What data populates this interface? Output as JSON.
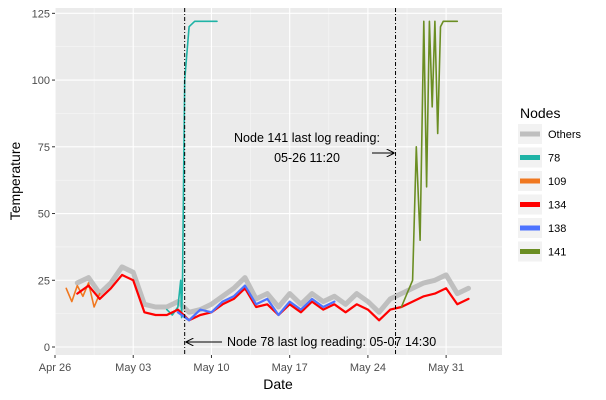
{
  "chart_data": {
    "type": "line",
    "title": "",
    "xlabel": "Date",
    "ylabel": "Temperature",
    "xlim": [
      "2015-04-26",
      "2015-06-05"
    ],
    "ylim": [
      -3,
      127
    ],
    "x_ticks": [
      {
        "date": "2015-04-26",
        "label": "Apr 26"
      },
      {
        "date": "2015-05-03",
        "label": "May 03"
      },
      {
        "date": "2015-05-10",
        "label": "May 10"
      },
      {
        "date": "2015-05-17",
        "label": "May 17"
      },
      {
        "date": "2015-05-24",
        "label": "May 24"
      },
      {
        "date": "2015-05-31",
        "label": "May 31"
      }
    ],
    "y_ticks": [
      0,
      25,
      50,
      75,
      100,
      125
    ],
    "grid": true,
    "legend": {
      "title": "Nodes",
      "position": "right"
    },
    "series": [
      {
        "name": "Others",
        "color": "#bfbfbf",
        "x": [
          "2015-04-28 00:00",
          "2015-04-29 00:00",
          "2015-04-30 00:00",
          "2015-05-01 00:00",
          "2015-05-02 00:00",
          "2015-05-03 00:00",
          "2015-05-04 00:00",
          "2015-05-05 00:00",
          "2015-05-06 00:00",
          "2015-05-07 00:00",
          "2015-05-08 00:00",
          "2015-05-09 00:00",
          "2015-05-10 00:00",
          "2015-05-11 00:00",
          "2015-05-12 00:00",
          "2015-05-13 00:00",
          "2015-05-14 00:00",
          "2015-05-15 00:00",
          "2015-05-16 00:00",
          "2015-05-17 00:00",
          "2015-05-18 00:00",
          "2015-05-19 00:00",
          "2015-05-20 00:00",
          "2015-05-21 00:00",
          "2015-05-22 00:00",
          "2015-05-23 00:00",
          "2015-05-24 00:00",
          "2015-05-25 00:00",
          "2015-05-26 00:00",
          "2015-05-27 00:00",
          "2015-05-28 00:00",
          "2015-05-29 00:00",
          "2015-05-30 00:00",
          "2015-05-31 00:00",
          "2015-06-01 00:00",
          "2015-06-02 00:00"
        ],
        "y": [
          24,
          26,
          20,
          24,
          30,
          28,
          16,
          15,
          15,
          17,
          13,
          14,
          16,
          19,
          22,
          26,
          18,
          20,
          15,
          20,
          16,
          20,
          17,
          19,
          16,
          20,
          17,
          13,
          18,
          20,
          22,
          24,
          25,
          27,
          20,
          22
        ]
      },
      {
        "name": "78",
        "color": "#1fb3a6",
        "x": [
          "2015-05-06 00:00",
          "2015-05-06 12:00",
          "2015-05-07 00:00",
          "2015-05-07 06:00",
          "2015-05-07 08:00",
          "2015-05-07 10:00",
          "2015-05-07 12:00",
          "2015-05-07 14:30",
          "2015-05-08 00:00",
          "2015-05-08 12:00",
          "2015-05-09 00:00",
          "2015-05-10 00:00",
          "2015-05-10 12:00"
        ],
        "y": [
          14,
          12,
          15,
          25,
          11,
          27,
          60,
          100,
          120,
          122,
          122,
          122,
          122
        ]
      },
      {
        "name": "109",
        "color": "#f07820",
        "x": [
          "2015-04-27 00:00",
          "2015-04-27 12:00",
          "2015-04-28 00:00",
          "2015-04-28 12:00",
          "2015-04-29 00:00",
          "2015-04-29 12:00",
          "2015-04-30 00:00"
        ],
        "y": [
          22,
          17,
          23,
          19,
          24,
          15,
          20
        ]
      },
      {
        "name": "134",
        "color": "#ff0000",
        "x": [
          "2015-04-28 00:00",
          "2015-04-29 00:00",
          "2015-04-30 00:00",
          "2015-05-01 00:00",
          "2015-05-02 00:00",
          "2015-05-03 00:00",
          "2015-05-04 00:00",
          "2015-05-05 00:00",
          "2015-05-06 00:00",
          "2015-05-07 00:00",
          "2015-05-08 00:00",
          "2015-05-09 00:00",
          "2015-05-10 00:00",
          "2015-05-11 00:00",
          "2015-05-12 00:00",
          "2015-05-13 00:00",
          "2015-05-14 00:00",
          "2015-05-15 00:00",
          "2015-05-16 00:00",
          "2015-05-17 00:00",
          "2015-05-18 00:00",
          "2015-05-19 00:00",
          "2015-05-20 00:00",
          "2015-05-21 00:00",
          "2015-05-22 00:00",
          "2015-05-23 00:00",
          "2015-05-24 00:00",
          "2015-05-25 00:00",
          "2015-05-26 00:00",
          "2015-05-27 00:00",
          "2015-05-28 00:00",
          "2015-05-29 00:00",
          "2015-05-30 00:00",
          "2015-05-31 00:00",
          "2015-06-01 00:00",
          "2015-06-02 00:00"
        ],
        "y": [
          20,
          23,
          18,
          22,
          27,
          25,
          13,
          12,
          12,
          14,
          10,
          12,
          13,
          16,
          18,
          22,
          15,
          16,
          12,
          16,
          13,
          17,
          14,
          16,
          13,
          16,
          14,
          10,
          14,
          15,
          17,
          19,
          20,
          22,
          16,
          18
        ]
      },
      {
        "name": "138",
        "color": "#4d73ff",
        "x": [
          "2015-05-07 00:00",
          "2015-05-08 00:00",
          "2015-05-09 00:00",
          "2015-05-10 00:00",
          "2015-05-11 00:00",
          "2015-05-12 00:00",
          "2015-05-13 00:00",
          "2015-05-14 00:00",
          "2015-05-15 00:00",
          "2015-05-16 00:00",
          "2015-05-17 00:00",
          "2015-05-18 00:00",
          "2015-05-19 00:00",
          "2015-05-20 00:00",
          "2015-05-21 00:00"
        ],
        "y": [
          13,
          10,
          14,
          13,
          17,
          19,
          23,
          16,
          18,
          12,
          17,
          14,
          18,
          15,
          17
        ]
      },
      {
        "name": "141",
        "color": "#6b8e23",
        "x": [
          "2015-05-27 00:00",
          "2015-05-27 12:00",
          "2015-05-28 00:00",
          "2015-05-28 08:00",
          "2015-05-28 16:00",
          "2015-05-29 00:00",
          "2015-05-29 06:00",
          "2015-05-29 12:00",
          "2015-05-29 18:00",
          "2015-05-30 00:00",
          "2015-05-30 06:00",
          "2015-05-30 12:00",
          "2015-05-30 18:00",
          "2015-05-31 00:00",
          "2015-05-31 12:00",
          "2015-06-01 00:00"
        ],
        "y": [
          15,
          20,
          25,
          75,
          40,
          122,
          60,
          122,
          90,
          122,
          80,
          120,
          122,
          122,
          122,
          122
        ]
      }
    ],
    "annotations": [
      {
        "text_lines": [
          "Node 141 last log reading:",
          "05-26 11:20"
        ],
        "vline_date": "2015-05-26 11:20",
        "arrow": "right"
      },
      {
        "text_lines": [
          "Node 78 last log reading: 05-07 14:30"
        ],
        "vline_date": "2015-05-07 14:30",
        "arrow": "left"
      }
    ]
  }
}
